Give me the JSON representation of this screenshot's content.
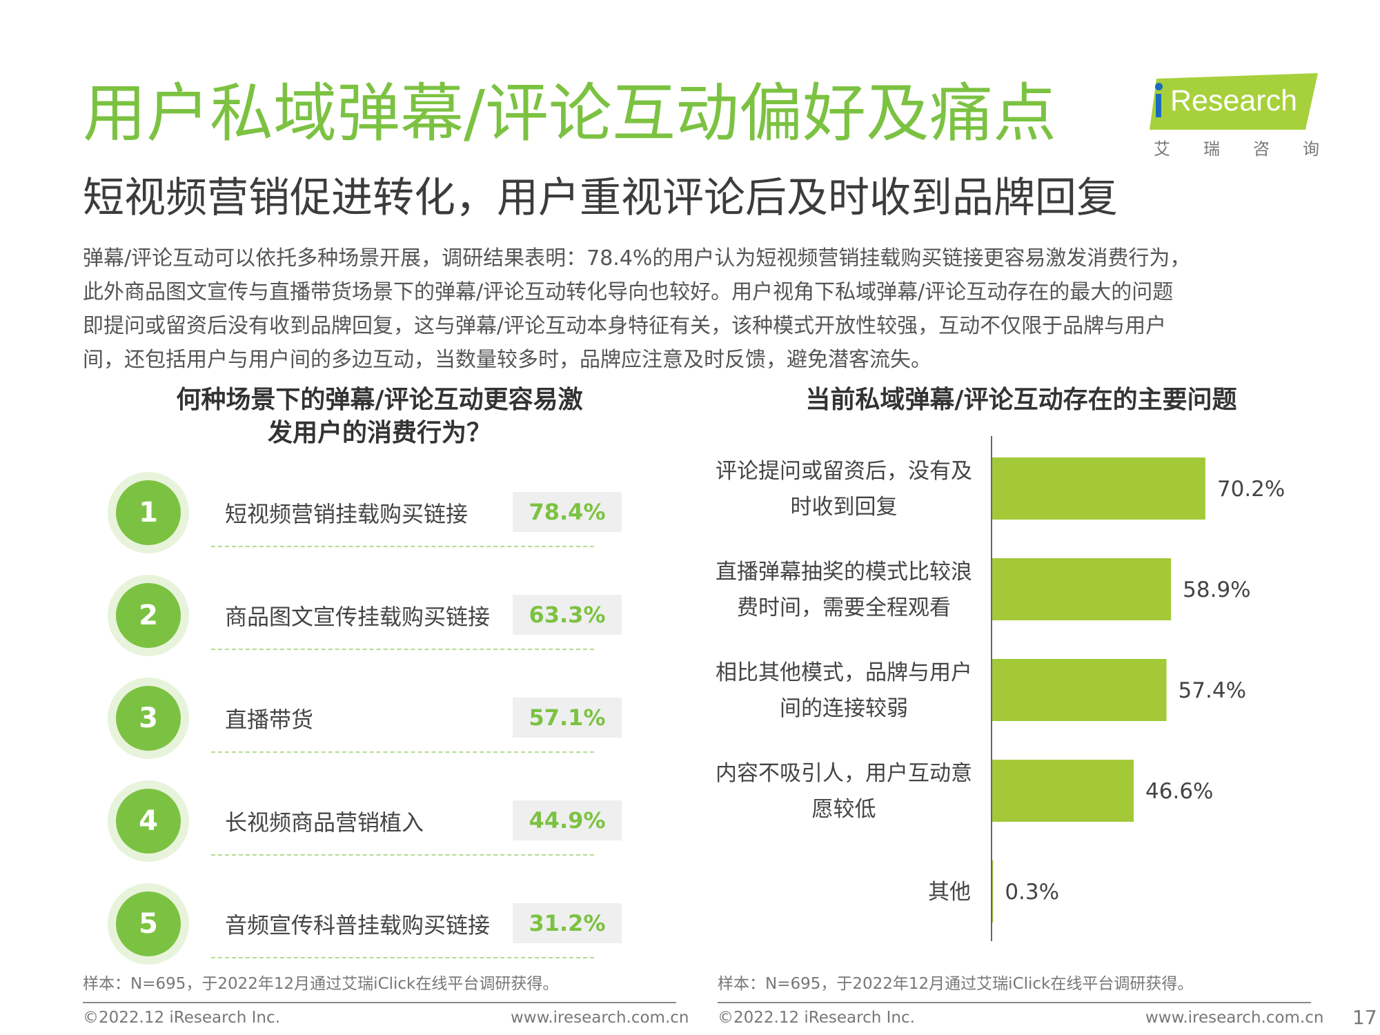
{
  "header": {
    "title": "用户私域弹幕/评论互动偏好及痛点",
    "subtitle": "短视频营销促进转化，用户重视评论后及时收到品牌回复",
    "intro_lines": [
      "弹幕/评论互动可以依托多种场景开展，调研结果表明：78.4%的用户认为短视频营销挂载购买链接更容易激发消费行为，",
      "此外商品图文宣传与直播带货场景下的弹幕/评论互动转化导向也较好。用户视角下私域弹幕/评论互动存在的最大的问题",
      "即提问或留资后没有收到品牌回复，这与弹幕/评论互动本身特征有关，该种模式开放性较强，互动不仅限于品牌与用户",
      "间，还包括用户与用户间的多边互动，当数量较多时，品牌应注意及时反馈，避免潜客流失。"
    ]
  },
  "logo": {
    "word": "Research",
    "cn_chars": [
      "艾",
      "瑞",
      "咨",
      "询"
    ],
    "banner_color": "#a7d13c",
    "dot_color": "#1a6bbf"
  },
  "chart_data": [
    {
      "type": "table",
      "title_lines": [
        "何种场景下的弹幕/评论互动更容易激",
        "发用户的消费行为？"
      ],
      "columns": [
        "rank",
        "scenario",
        "percent"
      ],
      "rows": [
        {
          "rank": "1",
          "label": "短视频营销挂载购买链接",
          "value": 78.4,
          "display": "78.4%"
        },
        {
          "rank": "2",
          "label": "商品图文宣传挂载购买链接",
          "value": 63.3,
          "display": "63.3%"
        },
        {
          "rank": "3",
          "label": "直播带货",
          "value": 57.1,
          "display": "57.1%"
        },
        {
          "rank": "4",
          "label": "长视频商品营销植入",
          "value": 44.9,
          "display": "44.9%"
        },
        {
          "rank": "5",
          "label": "音频宣传科普挂载购买链接",
          "value": 31.2,
          "display": "31.2%"
        }
      ],
      "accent_color": "#7cc242"
    },
    {
      "type": "bar",
      "orientation": "horizontal",
      "title": "当前私域弹幕/评论互动存在的主要问题",
      "categories": [
        [
          "评论提问或留资后，没有及",
          "时收到回复"
        ],
        [
          "直播弹幕抽奖的模式比较浪",
          "费时间，需要全程观看"
        ],
        [
          "相比其他模式，品牌与用户",
          "间的连接较弱"
        ],
        [
          "内容不吸引人，用户互动意",
          "愿较低"
        ],
        [
          "其他"
        ]
      ],
      "values": [
        70.2,
        58.9,
        57.4,
        46.6,
        0.3
      ],
      "value_labels": [
        "70.2%",
        "58.9%",
        "57.4%",
        "46.6%",
        "0.3%"
      ],
      "xlim": [
        0,
        100
      ],
      "bar_color": "#a3c939",
      "grid": false
    }
  ],
  "footer": {
    "sample": "样本：N=695，于2022年12月通过艾瑞iClick在线平台调研获得。",
    "copyright": "©2022.12 iResearch Inc.",
    "url": "www.iresearch.com.cn",
    "page": "17"
  }
}
